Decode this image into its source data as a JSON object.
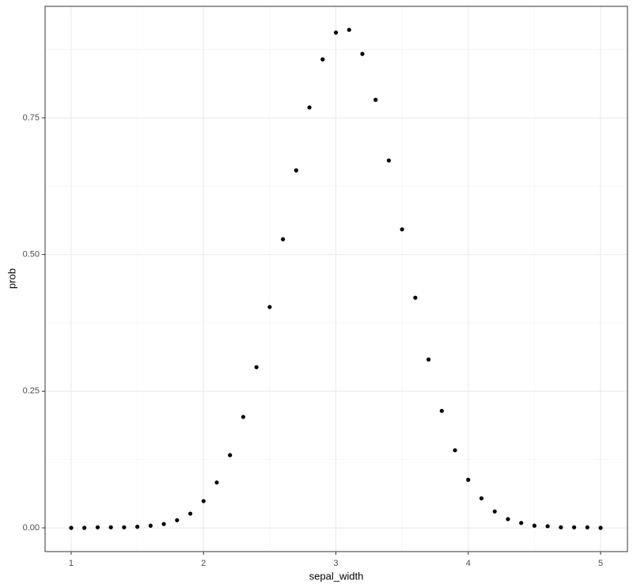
{
  "chart_data": {
    "type": "scatter",
    "x_label": "sepal_width",
    "y_label": "prob",
    "x": [
      1.0,
      1.1,
      1.2,
      1.3,
      1.4,
      1.5,
      1.6,
      1.7,
      1.8,
      1.9,
      2.0,
      2.1,
      2.2,
      2.3,
      2.4,
      2.5,
      2.6,
      2.7,
      2.8,
      2.9,
      3.0,
      3.1,
      3.2,
      3.3,
      3.4,
      3.5,
      3.6,
      3.7,
      3.8,
      3.9,
      4.0,
      4.1,
      4.2,
      4.3,
      4.4,
      4.5,
      4.6,
      4.7,
      4.8,
      4.9,
      5.0
    ],
    "values": [
      0,
      0,
      0.001,
      0.001,
      0.001,
      0.002,
      0.004,
      0.007,
      0.014,
      0.026,
      0.049,
      0.083,
      0.133,
      0.203,
      0.294,
      0.404,
      0.528,
      0.654,
      0.769,
      0.857,
      0.906,
      0.911,
      0.867,
      0.783,
      0.672,
      0.546,
      0.421,
      0.308,
      0.214,
      0.142,
      0.088,
      0.054,
      0.03,
      0.016,
      0.009,
      0.004,
      0.003,
      0.001,
      0.001,
      0.001,
      0
    ],
    "color": "#000000",
    "xlim": [
      0.803,
      5.203
    ],
    "ylim": [
      -0.0434,
      0.954
    ],
    "xticks": [
      1,
      2,
      3,
      4,
      5
    ],
    "yticks": [
      {
        "value": 0,
        "label": "0.00"
      },
      {
        "value": 0.25,
        "label": "0.25"
      },
      {
        "value": 0.5,
        "label": "0.50"
      },
      {
        "value": 0.75,
        "label": "0.75"
      }
    ],
    "xminor": [
      1.5,
      2.5,
      3.5,
      4.5
    ],
    "yminor": [
      0.125,
      0.375,
      0.625,
      0.875
    ],
    "grid": true
  }
}
